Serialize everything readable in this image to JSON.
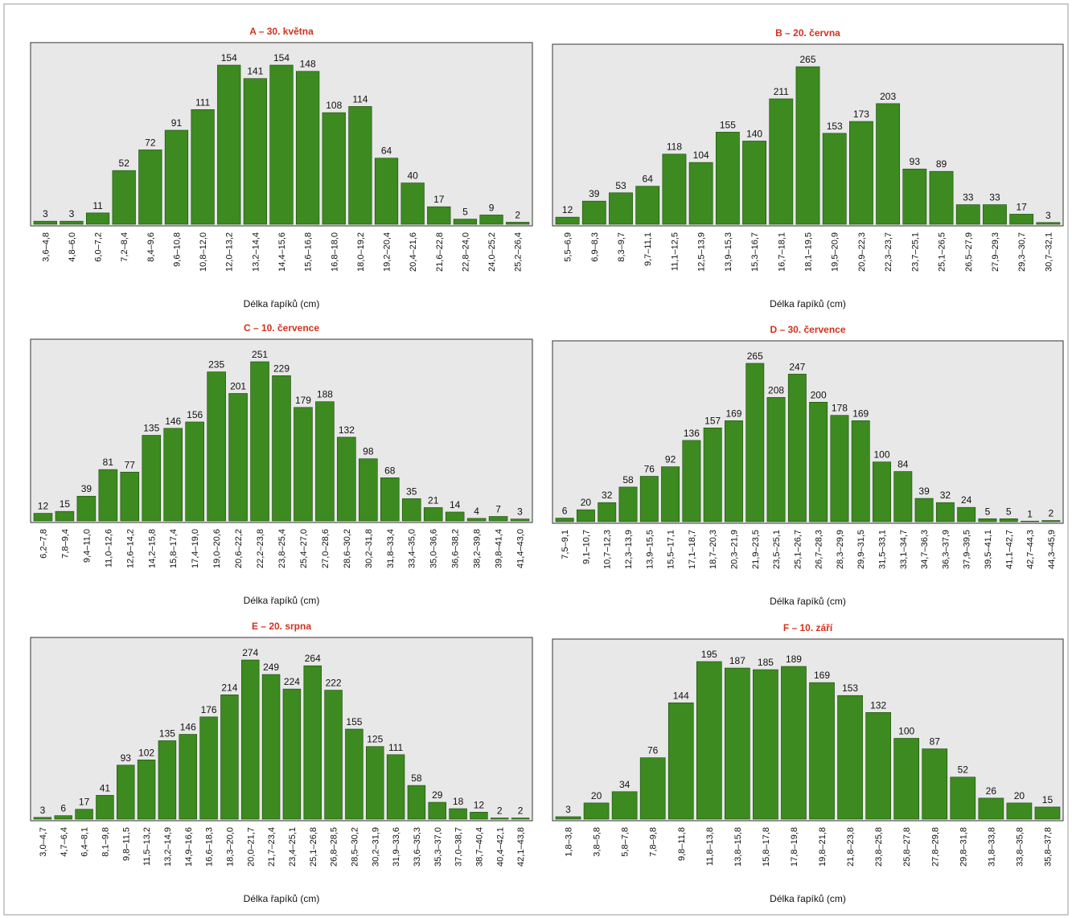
{
  "chart_data": [
    {
      "type": "bar",
      "title": "A – 30. května",
      "x_label": "Délka řapíků (cm)",
      "color": "#3c8a20",
      "categories": [
        "3,6–4,8",
        "4,8–6,0",
        "6,0–7,2",
        "7,2–8,4",
        "8,4–9,6",
        "9,6–10,8",
        "10,8–12,0",
        "12,0–13,2",
        "13,2–14,4",
        "14,4–15,6",
        "15,6–16,8",
        "16,8–18,0",
        "18,0–19,2",
        "19,2–20,4",
        "20,4–21,6",
        "21,6–22,8",
        "22,8–24,0",
        "24,0–25,2",
        "25,2–26,4"
      ],
      "values": [
        3,
        3,
        11,
        52,
        72,
        91,
        111,
        154,
        141,
        154,
        148,
        108,
        114,
        64,
        40,
        17,
        5,
        9,
        2
      ]
    },
    {
      "type": "bar",
      "title": "B – 20. června",
      "x_label": "Délka řapíků (cm)",
      "color": "#3c8a20",
      "categories": [
        "5,5–6,9",
        "6,9–8,3",
        "8,3–9,7",
        "9,7–11,1",
        "11,1–12,5",
        "12,5–13,9",
        "13,9–15,3",
        "15,3–16,7",
        "16,7–18,1",
        "18,1–19,5",
        "19,5–20,9",
        "20,9–22,3",
        "22,3–23,7",
        "23,7–25,1",
        "25,1–26,5",
        "26,5–27,9",
        "27,9–29,3",
        "29,3–30,7",
        "30,7–32,1"
      ],
      "values": [
        12,
        39,
        53,
        64,
        118,
        104,
        155,
        140,
        211,
        265,
        153,
        173,
        203,
        93,
        89,
        33,
        33,
        17,
        3
      ]
    },
    {
      "type": "bar",
      "title": "C – 10. července",
      "x_label": "Délka řapíků (cm)",
      "color": "#3c8a20",
      "categories": [
        "6,2–7,8",
        "7,8–9,4",
        "9,4–11,0",
        "11,0–12,6",
        "12,6–14,2",
        "14,2–15,8",
        "15,8–17,4",
        "17,4–19,0",
        "19,0–20,6",
        "20,6–22,2",
        "22,2–23,8",
        "23,8–25,4",
        "25,4–27,0",
        "27,0–28,6",
        "28,6–30,2",
        "30,2–31,8",
        "31,8–33,4",
        "33,4–35,0",
        "35,0–36,6",
        "36,6–38,2",
        "38,2–39,8",
        "39,8–41,4",
        "41,4–43,0"
      ],
      "values": [
        12,
        15,
        39,
        81,
        77,
        135,
        146,
        156,
        235,
        201,
        251,
        229,
        179,
        188,
        132,
        98,
        68,
        35,
        21,
        14,
        4,
        7,
        3
      ]
    },
    {
      "type": "bar",
      "title": "D – 30. července",
      "x_label": "Délka řapíků (cm)",
      "color": "#3c8a20",
      "categories": [
        "7,5–9,1",
        "9,1–10,7",
        "10,7–12,3",
        "12,3–13,9",
        "13,9–15,5",
        "15,5–17,1",
        "17,1–18,7",
        "18,7–20,3",
        "20,3–21,9",
        "21,9–23,5",
        "23,5–25,1",
        "25,1–26,7",
        "26,7–28,3",
        "28,3–29,9",
        "29,9–31,5",
        "31,5–33,1",
        "33,1–34,7",
        "34,7–36,3",
        "36,3–37,9",
        "37,9–39,5",
        "39,5–41,1",
        "41,1–42,7",
        "42,7–44,3",
        "44,3–45,9"
      ],
      "values": [
        6,
        20,
        32,
        58,
        76,
        92,
        136,
        157,
        169,
        265,
        208,
        247,
        200,
        178,
        169,
        100,
        84,
        39,
        32,
        24,
        5,
        5,
        1,
        2
      ]
    },
    {
      "type": "bar",
      "title": "E – 20. srpna",
      "x_label": "Délka řapíků (cm)",
      "color": "#3c8a20",
      "categories": [
        "3,0–4,7",
        "4,7–6,4",
        "6,4–8,1",
        "8,1–9,8",
        "9,8–11,5",
        "11,5–13,2",
        "13,2–14,9",
        "14,9–16,6",
        "16,6–18,3",
        "18,3–20,0",
        "20,0–21,7",
        "21,7–23,4",
        "23,4–25,1",
        "25,1–26,8",
        "26,8–28,5",
        "28,5–30,2",
        "30,2–31,9",
        "31,9–33,6",
        "33,6–35,3",
        "35,3–37,0",
        "37,0–38,7",
        "38,7–40,4",
        "40,4–42,1",
        "42,1–43,8"
      ],
      "values": [
        3,
        6,
        17,
        41,
        93,
        102,
        135,
        146,
        176,
        214,
        274,
        249,
        224,
        264,
        222,
        155,
        125,
        111,
        58,
        29,
        18,
        12,
        2,
        2
      ]
    },
    {
      "type": "bar",
      "title": "F – 10. září",
      "x_label": "Délka řapíků (cm)",
      "color": "#3c8a20",
      "categories": [
        "1,8–3,8",
        "3,8–5,8",
        "5,8–7,8",
        "7,8–9,8",
        "9,8–11,8",
        "11,8–13,8",
        "13,8–15,8",
        "15,8–17,8",
        "17,8–19,8",
        "19,8–21,8",
        "21,8–23,8",
        "23,8–25,8",
        "25,8–27,8",
        "27,8–29,8",
        "29,8–31,8",
        "31,8–33,8",
        "33,8–35,8",
        "35,8–37,8"
      ],
      "values": [
        3,
        20,
        34,
        76,
        144,
        195,
        187,
        185,
        189,
        169,
        153,
        132,
        100,
        87,
        52,
        26,
        20,
        15
      ]
    }
  ]
}
